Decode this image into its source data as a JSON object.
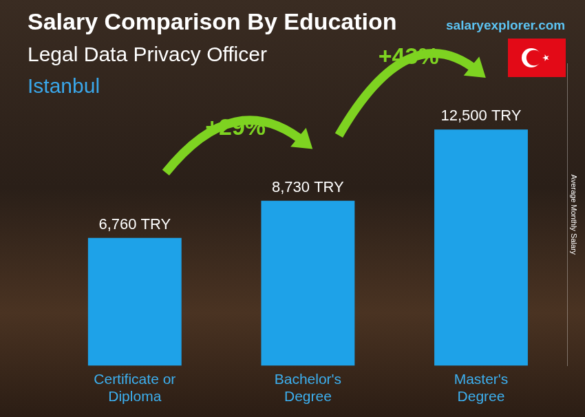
{
  "chart_data": {
    "type": "bar",
    "title": "Salary Comparison By Education",
    "subtitle": [
      "Legal Data Privacy Officer",
      "Istanbul"
    ],
    "source": "salaryexplorer.com",
    "y_label": "Average Monthly Salary",
    "categories": [
      "Certificate or Diploma",
      "Bachelor's Degree",
      "Master's Degree"
    ],
    "values": [
      6760,
      8730,
      12500
    ],
    "value_labels": [
      "6,760 TRY",
      "8,730 TRY",
      "12,500 TRY"
    ],
    "annotations": [
      "+29%",
      "+43%"
    ],
    "color": "#1ea2e8",
    "ylim": [
      0,
      16000
    ],
    "grid": false,
    "data_labels": true,
    "tick_labels": "x"
  }
}
